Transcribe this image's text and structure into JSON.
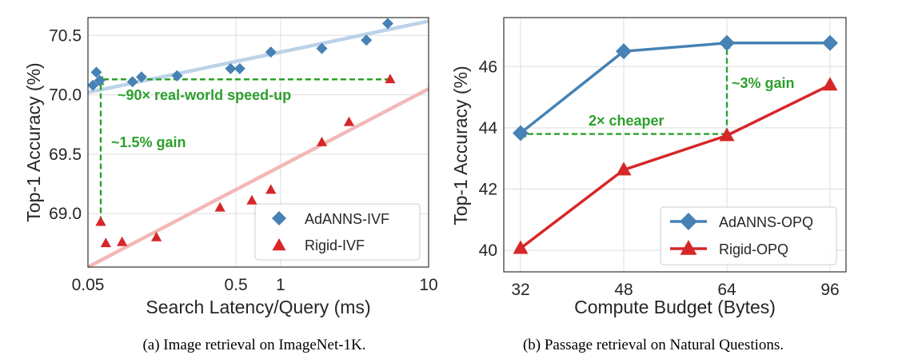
{
  "chart_data": [
    {
      "type": "scatter",
      "xlabel": "Search Latency/Query (ms)",
      "ylabel": "Top-1 Accuracy (%)",
      "xscale": "log",
      "xlim": [
        0.05,
        10
      ],
      "ylim": [
        68.55,
        70.65
      ],
      "xticks": [
        0.05,
        0.5,
        1,
        10
      ],
      "xtick_labels": [
        "0.05",
        "0.5",
        "1",
        "10"
      ],
      "yticks": [
        69.0,
        69.5,
        70.0,
        70.5
      ],
      "ytick_labels": [
        "69.0",
        "69.5",
        "70.0",
        "70.5"
      ],
      "grid": true,
      "legend_position": "lower-right",
      "caption": "(a) Image retrieval on ImageNet-1K.",
      "series": [
        {
          "name": "AdANNS-IVF",
          "marker": "diamond",
          "color": "#4682b4",
          "points": [
            [
              0.054,
              70.08
            ],
            [
              0.057,
              70.19
            ],
            [
              0.06,
              70.12
            ],
            [
              0.1,
              70.11
            ],
            [
              0.115,
              70.15
            ],
            [
              0.2,
              70.16
            ],
            [
              0.46,
              70.22
            ],
            [
              0.53,
              70.22
            ],
            [
              0.86,
              70.36
            ],
            [
              1.9,
              70.39
            ],
            [
              3.8,
              70.46
            ],
            [
              5.3,
              70.6
            ]
          ]
        },
        {
          "name": "Rigid-IVF",
          "marker": "triangle",
          "color": "#d62728",
          "points": [
            [
              0.061,
              68.93
            ],
            [
              0.066,
              68.75
            ],
            [
              0.085,
              68.76
            ],
            [
              0.145,
              68.8
            ],
            [
              0.39,
              69.05
            ],
            [
              0.64,
              69.11
            ],
            [
              0.86,
              69.2
            ],
            [
              1.9,
              69.6
            ],
            [
              2.9,
              69.77
            ],
            [
              5.5,
              70.13
            ]
          ]
        }
      ],
      "trendlines": [
        {
          "series": "AdANNS-IVF",
          "color": "#bcd2e8",
          "from": [
            0.05,
            70.02
          ],
          "to": [
            10,
            70.62
          ]
        },
        {
          "series": "Rigid-IVF",
          "color": "#f2b8b8",
          "from": [
            0.05,
            68.55
          ],
          "to": [
            10,
            70.05
          ]
        }
      ],
      "annotations": [
        {
          "text": "~90× real-world speed-up",
          "color": "#2ca02c",
          "arrow_from": [
            5.5,
            70.13
          ],
          "arrow_to": [
            0.058,
            70.13
          ]
        },
        {
          "text": "~1.5% gain",
          "color": "#2ca02c",
          "arrow_from": [
            0.061,
            68.93
          ],
          "arrow_to": [
            0.061,
            70.13
          ]
        }
      ]
    },
    {
      "type": "line",
      "xlabel": "Compute Budget (Bytes)",
      "ylabel": "Top-1 Accuracy (%)",
      "categories": [
        "32",
        "48",
        "64",
        "96"
      ],
      "ylim": [
        39.3,
        47.6
      ],
      "yticks": [
        40,
        42,
        44,
        46
      ],
      "ytick_labels": [
        "40",
        "42",
        "44",
        "46"
      ],
      "grid": true,
      "legend_position": "lower-right",
      "caption": "(b) Passage retrieval on Natural Questions.",
      "series": [
        {
          "name": "AdANNS-OPQ",
          "marker": "diamond",
          "color": "#4682b4",
          "values": [
            43.83,
            46.5,
            46.77,
            46.77
          ]
        },
        {
          "name": "Rigid-OPQ",
          "marker": "triangle",
          "color": "#d62728",
          "values": [
            40.07,
            42.63,
            43.75,
            45.4
          ]
        }
      ],
      "annotations": [
        {
          "text": "2× cheaper",
          "color": "#2ca02c",
          "arrow_from": [
            "64",
            43.8
          ],
          "arrow_to": [
            "32",
            43.8
          ]
        },
        {
          "text": "~3% gain",
          "color": "#2ca02c",
          "arrow_from": [
            "64",
            43.8
          ],
          "arrow_to": [
            "64",
            46.77
          ]
        }
      ]
    }
  ]
}
